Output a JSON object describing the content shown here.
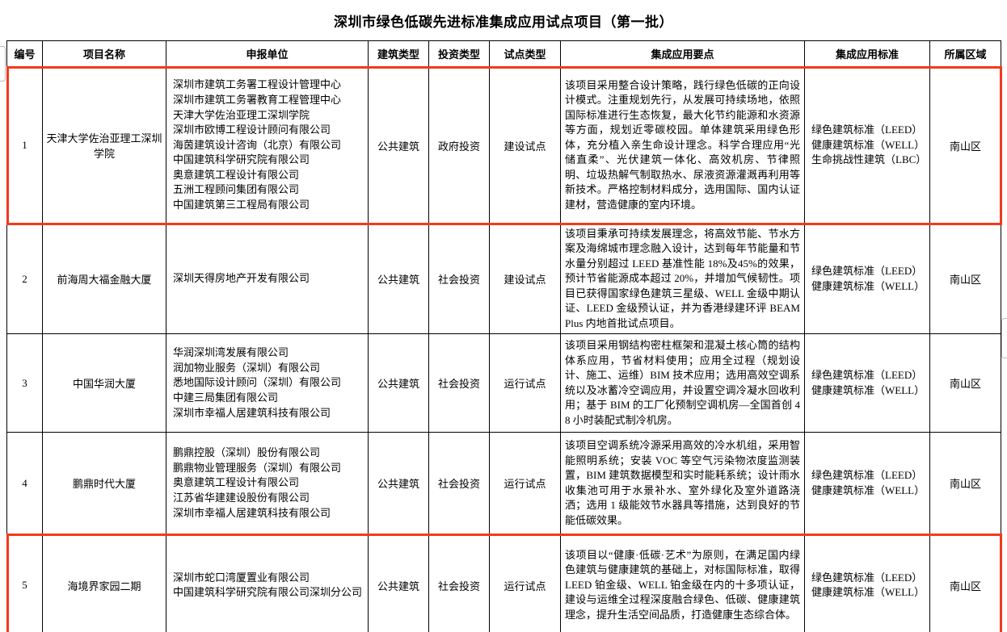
{
  "title": "深圳市绿色低碳先进标准集成应用试点项目（第一批）",
  "colors": {
    "highlight_red": "#f4391c",
    "border_black": "#000000"
  },
  "table": {
    "headers": [
      "编号",
      "项目名称",
      "申报单位",
      "建筑类型",
      "投资类型",
      "试点类型",
      "集成应用要点",
      "集成应用标准",
      "所属区域"
    ],
    "rows": [
      {
        "id": "1",
        "name": "天津大学佐治亚理工深圳学院",
        "applicants": [
          "深圳市建筑工务署工程设计管理中心",
          "深圳市建筑工务署教育工程管理中心",
          "天津大学佐治亚理工深圳学院",
          "深圳市欧博工程设计顾问有限公司",
          "海茵建筑设计咨询（北京）有限公司",
          "中国建筑科学研究院有限公司",
          "奥意建筑工程设计有限公司",
          "五洲工程顾问集团有限公司",
          "中国建筑第三工程局有限公司"
        ],
        "building_type": "公共建筑",
        "investment_type": "政府投资",
        "pilot_type": "建设试点",
        "key_points": "该项目采用整合设计策略，践行绿色低碳的正向设计模式。注重规划先行，从发展可持续场地，依照国际标准进行生态恢复，最大化节约能源和水资源等方面，规划近零碳校园。单体建筑采用绿色形体，充分植入亲生命设计理念。科学合理应用“光储直柔”、光伏建筑一体化、高效机房、节律照明、垃圾热解气制取热水、尿液资源灌溉再利用等新技术。严格控制材料成分，选用国际、国内认证建材，营造健康的室内环境。",
        "standards": [
          "绿色建筑标准（LEED）",
          "健康建筑标准（WELL）",
          "生命挑战性建筑（LBC）"
        ],
        "district": "南山区",
        "highlighted": true
      },
      {
        "id": "2",
        "name": "前海周大福金融大厦",
        "applicants": [
          "深圳天得房地产开发有限公司"
        ],
        "building_type": "公共建筑",
        "investment_type": "社会投资",
        "pilot_type": "建设试点",
        "key_points": "该项目秉承可持续发展理念，将高效节能、节水方案及海绵城市理念融入设计，达到每年节能量和节水量分别超过 LEED 基准性能 18%及45%的效果，预计节省能源成本超过 20%，并增加气候韧性。项目已获得国家绿色建筑三星级、WELL 金级中期认证、LEED 金级预认证，并为香港绿建环评 BEAM Plus 内地首批试点项目。",
        "standards": [
          "绿色建筑标准（LEED）",
          "健康建筑标准（WELL）"
        ],
        "district": "南山区",
        "highlighted": false
      },
      {
        "id": "3",
        "name": "中国华润大厦",
        "applicants": [
          "华润深圳湾发展有限公司",
          "润加物业服务（深圳）有限公司",
          "悉地国际设计顾问（深圳）有限公司",
          "中建三局集团有限公司",
          "深圳市幸福人居建筑科技有限公司"
        ],
        "building_type": "公共建筑",
        "investment_type": "社会投资",
        "pilot_type": "运行试点",
        "key_points": "该项目采用钢结构密柱框架和混凝土核心筒的结构体系应用，节省材料使用；应用全过程（规划设计、施工、运维）BIM 技术应用；选用高效空调系统以及冰蓄冷空调应用，并设置空调冷凝水回收利用；基于 BIM 的工厂化预制空调机房—全国首创 48 小时装配式制冷机房。",
        "standards": [
          "绿色建筑标准（LEED）",
          "健康建筑标准（WELL）"
        ],
        "district": "南山区",
        "highlighted": false
      },
      {
        "id": "4",
        "name": "鹏鼎时代大厦",
        "applicants": [
          "鹏鼎控股（深圳）股份有限公司",
          "鹏鼎物业管理服务（深圳）有限公司",
          "奥意建筑工程设计有限公司",
          "江苏省华建建设股份有限公司",
          "深圳市幸福人居建筑科技有限公司"
        ],
        "building_type": "公共建筑",
        "investment_type": "社会投资",
        "pilot_type": "运行试点",
        "key_points": "该项目空调系统冷源采用高效的冷水机组，采用智能照明系统；安装 VOC 等空气污染物浓度监测装置，BIM 建筑数据模型和实时能耗系统；设计雨水收集池可用于水景补水、室外绿化及室外道路浇洒；选用 1 级能效节水器具等措施，达到良好的节能低碳效果。",
        "standards": [
          "绿色建筑标准（LEED）",
          "健康建筑标准（WELL）"
        ],
        "district": "南山区",
        "highlighted": false
      },
      {
        "id": "5",
        "name": "海境界家园二期",
        "applicants": [
          "深圳市蛇口湾厦置业有限公司",
          "中国建筑科学研究院有限公司深圳分公司"
        ],
        "building_type": "公共建筑",
        "investment_type": "社会投资",
        "pilot_type": "运行试点",
        "key_points": "该项目以“健康·低碳·艺术”为原则，在满足国内绿色建筑与健康建筑的基础上，对标国际标准，取得 LEED 铂金级、WELL 铂金级在内的十多项认证，建设与运维全过程深度融合绿色、低碳、健康建筑理念，提升生活空间品质，打造健康生态综合体。",
        "standards": [
          "绿色建筑标准（LEED）",
          "健康建筑标准（WELL）"
        ],
        "district": "南山区",
        "highlighted": true
      }
    ]
  }
}
